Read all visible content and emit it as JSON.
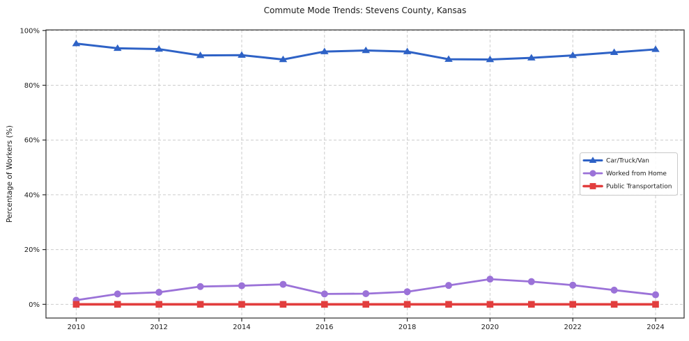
{
  "title": "Commute Mode Trends: Stevens County, Kansas",
  "chart_data": {
    "type": "line",
    "title": "Commute Mode Trends: Stevens County, Kansas",
    "xlabel": "",
    "ylabel": "Percentage of Workers (%)",
    "x": [
      2010,
      2011,
      2012,
      2013,
      2014,
      2015,
      2016,
      2017,
      2018,
      2019,
      2020,
      2021,
      2022,
      2023,
      2024
    ],
    "series": [
      {
        "name": "Car/Truck/Van",
        "color": "#2e62c6",
        "marker": "triangle",
        "line_width": 3.0,
        "values": [
          95.2,
          93.5,
          93.2,
          90.9,
          91.0,
          89.4,
          92.3,
          92.7,
          92.3,
          89.5,
          89.4,
          90.0,
          90.9,
          92.0,
          93.1
        ]
      },
      {
        "name": "Worked from Home",
        "color": "#9b72d8",
        "marker": "circle",
        "line_width": 2.8,
        "values": [
          1.5,
          3.8,
          4.4,
          6.5,
          6.8,
          7.3,
          3.8,
          3.9,
          4.6,
          6.9,
          9.2,
          8.3,
          7.0,
          5.2,
          3.5
        ]
      },
      {
        "name": "Public Transportation",
        "color": "#e23e3e",
        "marker": "square",
        "line_width": 3.6,
        "values": [
          0,
          0,
          0,
          0,
          0,
          0,
          0,
          0,
          0,
          0,
          0,
          0,
          0,
          0,
          0
        ]
      }
    ],
    "xticks": [
      2010,
      2012,
      2014,
      2016,
      2018,
      2020,
      2022,
      2024
    ],
    "ytick_values": [
      0,
      20,
      40,
      60,
      80,
      100
    ],
    "ytick_labels": [
      "0%",
      "20%",
      "40%",
      "60%",
      "80%",
      "100%"
    ],
    "xlim": [
      2009.27,
      2024.69
    ],
    "ylim": [
      -5.0,
      100.2
    ],
    "grid": true,
    "legend_position": "right-middle"
  },
  "style": {
    "grid_color": "#cccccc",
    "spine_color": "#2b2b2b",
    "tick_text_color": "#1a1a1a",
    "legend_border_color": "#c9c9c9",
    "legend_bg_color": "#ffffff"
  }
}
